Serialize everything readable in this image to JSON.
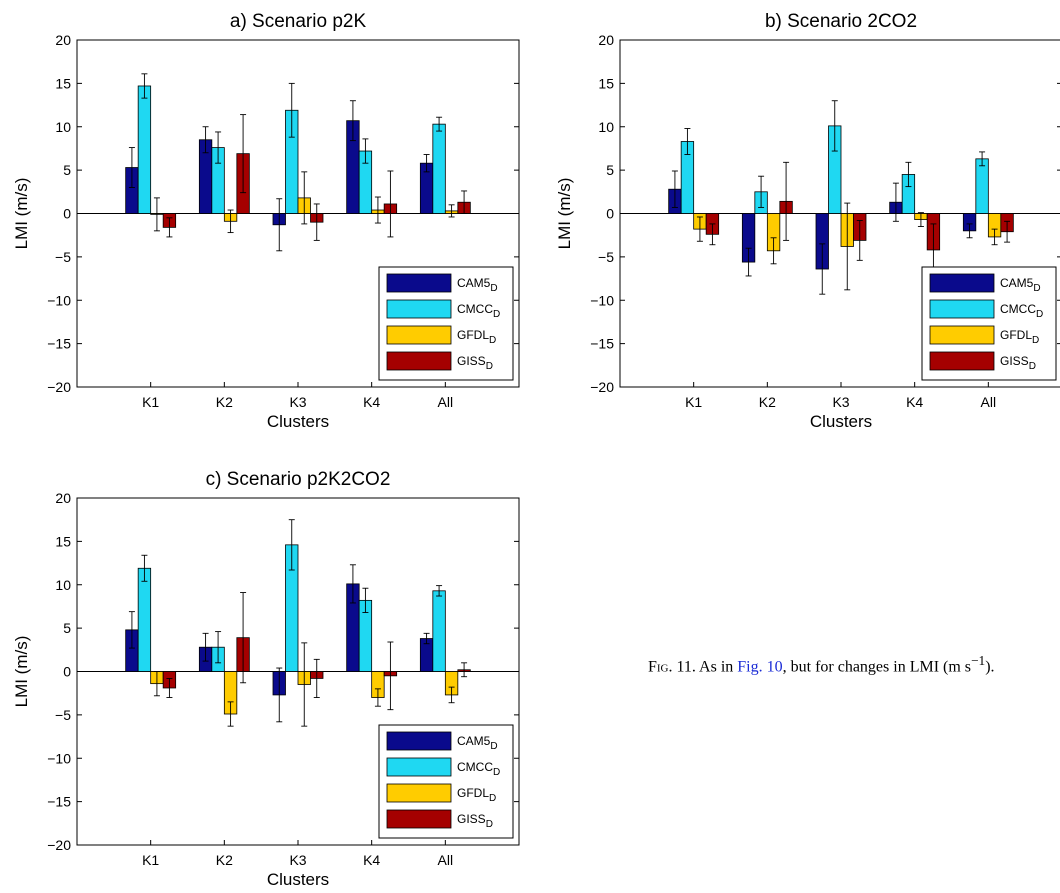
{
  "figure": {
    "legend": [
      {
        "label": "CAM5",
        "sub": "D",
        "color": "#0a0a8c"
      },
      {
        "label": "CMCC",
        "sub": "D",
        "color": "#1fd8f2"
      },
      {
        "label": "GFDL",
        "sub": "D",
        "color": "#ffcc00"
      },
      {
        "label": "GISS",
        "sub": "D",
        "color": "#a50000"
      }
    ],
    "caption": {
      "prefix": "Fig. 11.",
      "text_before_link": "As in",
      "link": "Fig. 10",
      "text_after_link": ", but for changes in LMI (m s",
      "exponent": "−1",
      "close": ")."
    }
  },
  "chart_data": [
    {
      "type": "bar",
      "title": "a) Scenario p2K",
      "xlabel": "Clusters",
      "ylabel": "LMI (m/s)",
      "ylim": [
        -20,
        20
      ],
      "yticks": [
        -20,
        -15,
        -10,
        -5,
        0,
        5,
        10,
        15,
        20
      ],
      "categories": [
        "K1",
        "K2",
        "K3",
        "K4",
        "All"
      ],
      "legend_position": "lower-right",
      "series": [
        {
          "name": "CAM5_D",
          "values": [
            5.3,
            8.5,
            -1.3,
            10.7,
            5.8
          ],
          "error": [
            2.3,
            1.5,
            3.0,
            2.3,
            1.0
          ]
        },
        {
          "name": "CMCC_D",
          "values": [
            14.7,
            7.6,
            11.9,
            7.2,
            10.3
          ],
          "error": [
            1.4,
            1.8,
            3.1,
            1.4,
            0.8
          ]
        },
        {
          "name": "GFDL_D",
          "values": [
            -0.1,
            -0.9,
            1.8,
            0.4,
            0.3
          ],
          "error": [
            1.9,
            1.3,
            3.0,
            1.5,
            0.7
          ]
        },
        {
          "name": "GISS_D",
          "values": [
            -1.6,
            6.9,
            -1.0,
            1.1,
            1.3
          ],
          "error": [
            1.1,
            4.5,
            2.1,
            3.8,
            1.3
          ]
        }
      ]
    },
    {
      "type": "bar",
      "title": "b) Scenario 2CO2",
      "xlabel": "Clusters",
      "ylabel": "LMI (m/s)",
      "ylim": [
        -20,
        20
      ],
      "yticks": [
        -20,
        -15,
        -10,
        -5,
        0,
        5,
        10,
        15,
        20
      ],
      "categories": [
        "K1",
        "K2",
        "K3",
        "K4",
        "All"
      ],
      "legend_position": "lower-right",
      "series": [
        {
          "name": "CAM5_D",
          "values": [
            2.8,
            -5.6,
            -6.4,
            1.3,
            -2.0
          ],
          "error": [
            2.1,
            1.6,
            2.9,
            2.2,
            0.8
          ]
        },
        {
          "name": "CMCC_D",
          "values": [
            8.3,
            2.5,
            10.1,
            4.5,
            6.3
          ],
          "error": [
            1.5,
            1.8,
            2.9,
            1.4,
            0.8
          ]
        },
        {
          "name": "GFDL_D",
          "values": [
            -1.8,
            -4.3,
            -3.8,
            -0.7,
            -2.7
          ],
          "error": [
            1.4,
            1.5,
            5.0,
            0.8,
            0.9
          ]
        },
        {
          "name": "GISS_D",
          "values": [
            -2.4,
            1.4,
            -3.1,
            -4.2,
            -2.1
          ],
          "error": [
            1.2,
            4.5,
            2.3,
            3.0,
            1.2
          ]
        }
      ]
    },
    {
      "type": "bar",
      "title": "c) Scenario p2K2CO2",
      "xlabel": "Clusters",
      "ylabel": "LMI (m/s)",
      "ylim": [
        -20,
        20
      ],
      "yticks": [
        -20,
        -15,
        -10,
        -5,
        0,
        5,
        10,
        15,
        20
      ],
      "categories": [
        "K1",
        "K2",
        "K3",
        "K4",
        "All"
      ],
      "legend_position": "lower-right",
      "series": [
        {
          "name": "CAM5_D",
          "values": [
            4.8,
            2.8,
            -2.7,
            10.1,
            3.8
          ],
          "error": [
            2.1,
            1.6,
            3.1,
            2.2,
            0.6
          ]
        },
        {
          "name": "CMCC_D",
          "values": [
            11.9,
            2.8,
            14.6,
            8.2,
            9.3
          ],
          "error": [
            1.5,
            1.8,
            2.9,
            1.4,
            0.6
          ]
        },
        {
          "name": "GFDL_D",
          "values": [
            -1.4,
            -4.9,
            -1.5,
            -3.0,
            -2.7
          ],
          "error": [
            1.4,
            1.4,
            4.8,
            1.0,
            0.9
          ]
        },
        {
          "name": "GISS_D",
          "values": [
            -1.9,
            3.9,
            -0.8,
            -0.5,
            0.2
          ],
          "error": [
            1.1,
            5.2,
            2.2,
            3.9,
            0.8
          ]
        }
      ]
    }
  ]
}
